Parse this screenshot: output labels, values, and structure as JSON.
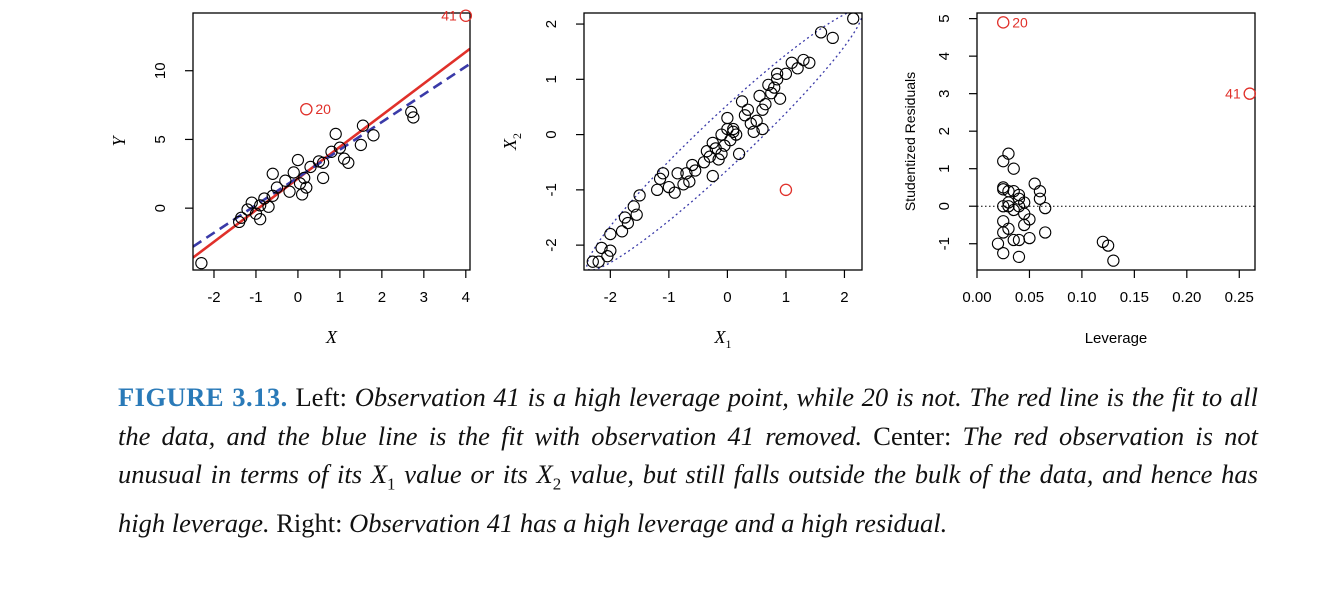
{
  "chart_data": [
    {
      "type": "scatter",
      "title": "",
      "xlabel": "X",
      "ylabel": "Y",
      "xlim": [
        -2.5,
        4.1
      ],
      "ylim": [
        -4.5,
        14.2
      ],
      "xticks": [
        "-2",
        "-1",
        "0",
        "1",
        "2",
        "3",
        "4"
      ],
      "yticks": [
        "0",
        "5",
        "10"
      ],
      "grid": false,
      "points": [
        [
          -2.3,
          -4.0
        ],
        [
          -1.4,
          -1.0
        ],
        [
          -1.35,
          -0.7
        ],
        [
          -1.2,
          -0.1
        ],
        [
          -1.1,
          0.4
        ],
        [
          -1.0,
          -0.4
        ],
        [
          -0.9,
          0.2
        ],
        [
          -0.9,
          -0.8
        ],
        [
          -0.8,
          0.7
        ],
        [
          -0.7,
          0.1
        ],
        [
          -0.6,
          0.9
        ],
        [
          -0.5,
          1.5
        ],
        [
          -0.6,
          2.5
        ],
        [
          -0.3,
          2.0
        ],
        [
          -0.2,
          1.2
        ],
        [
          -0.1,
          2.6
        ],
        [
          0.0,
          3.5
        ],
        [
          0.05,
          1.8
        ],
        [
          0.1,
          1.0
        ],
        [
          0.15,
          2.2
        ],
        [
          0.2,
          1.5
        ],
        [
          0.3,
          3.0
        ],
        [
          0.5,
          3.4
        ],
        [
          0.6,
          3.3
        ],
        [
          0.6,
          2.2
        ],
        [
          0.8,
          4.1
        ],
        [
          0.9,
          5.4
        ],
        [
          1.0,
          4.4
        ],
        [
          1.1,
          3.6
        ],
        [
          1.2,
          3.3
        ],
        [
          1.5,
          4.6
        ],
        [
          1.55,
          6.0
        ],
        [
          1.8,
          5.3
        ],
        [
          2.7,
          7.0
        ],
        [
          2.75,
          6.6
        ]
      ],
      "highlight_points": [
        {
          "label": "20",
          "x": 0.2,
          "y": 7.2
        },
        {
          "label": "41",
          "x": 4.0,
          "y": 14.0
        }
      ],
      "series": [
        {
          "name": "",
          "style": "solid",
          "color": "#e0302a",
          "line": {
            "x": [
              -2.5,
              4.1
            ],
            "y": [
              -3.6,
              11.6
            ]
          }
        },
        {
          "name": "",
          "style": "dashed",
          "color": "#3a3aa8",
          "line": {
            "x": [
              -2.5,
              4.1
            ],
            "y": [
              -2.8,
              10.5
            ]
          }
        }
      ]
    },
    {
      "type": "scatter",
      "title": "",
      "xlabel": "X",
      "xlabel_sub": "1",
      "ylabel": "X",
      "ylabel_sub": "2",
      "xlim": [
        -2.45,
        2.3
      ],
      "ylim": [
        -2.45,
        2.2
      ],
      "xticks": [
        "-2",
        "-1",
        "0",
        "1",
        "2"
      ],
      "yticks": [
        "-2",
        "-1",
        "0",
        "1",
        "2"
      ],
      "grid": false,
      "points": [
        [
          -2.3,
          -2.3
        ],
        [
          -2.2,
          -2.3
        ],
        [
          -2.15,
          -2.05
        ],
        [
          -2.05,
          -2.2
        ],
        [
          -2.0,
          -2.1
        ],
        [
          -2.0,
          -1.8
        ],
        [
          -1.8,
          -1.75
        ],
        [
          -1.75,
          -1.5
        ],
        [
          -1.7,
          -1.6
        ],
        [
          -1.6,
          -1.3
        ],
        [
          -1.55,
          -1.45
        ],
        [
          -1.5,
          -1.1
        ],
        [
          -1.2,
          -1.0
        ],
        [
          -1.15,
          -0.8
        ],
        [
          -1.1,
          -0.7
        ],
        [
          -1.0,
          -0.95
        ],
        [
          -0.9,
          -1.05
        ],
        [
          -0.85,
          -0.7
        ],
        [
          -0.75,
          -0.9
        ],
        [
          -0.7,
          -0.7
        ],
        [
          -0.65,
          -0.85
        ],
        [
          -0.6,
          -0.55
        ],
        [
          -0.55,
          -0.65
        ],
        [
          -0.4,
          -0.5
        ],
        [
          -0.35,
          -0.3
        ],
        [
          -0.3,
          -0.4
        ],
        [
          -0.25,
          -0.15
        ],
        [
          -0.2,
          -0.25
        ],
        [
          -0.15,
          -0.45
        ],
        [
          -0.1,
          -0.35
        ],
        [
          -0.1,
          0.0
        ],
        [
          0.0,
          0.3
        ],
        [
          0.05,
          -0.1
        ],
        [
          0.1,
          0.1
        ],
        [
          0.15,
          0.0
        ],
        [
          0.2,
          -0.35
        ],
        [
          0.25,
          0.6
        ],
        [
          0.3,
          0.35
        ],
        [
          0.35,
          0.45
        ],
        [
          0.4,
          0.2
        ],
        [
          0.45,
          0.05
        ],
        [
          0.5,
          0.25
        ],
        [
          0.55,
          0.7
        ],
        [
          0.6,
          0.1
        ],
        [
          0.65,
          0.55
        ],
        [
          0.7,
          0.9
        ],
        [
          0.75,
          0.75
        ],
        [
          0.8,
          0.85
        ],
        [
          0.85,
          1.0
        ],
        [
          0.9,
          0.65
        ],
        [
          1.0,
          1.1
        ],
        [
          1.1,
          1.3
        ],
        [
          1.2,
          1.2
        ],
        [
          1.3,
          1.35
        ],
        [
          1.4,
          1.3
        ],
        [
          1.6,
          1.85
        ],
        [
          1.8,
          1.75
        ],
        [
          2.15,
          2.1
        ],
        [
          -0.25,
          -0.75
        ],
        [
          0.0,
          0.1
        ],
        [
          0.1,
          0.05
        ],
        [
          -0.05,
          -0.2
        ],
        [
          0.85,
          1.1
        ],
        [
          0.6,
          0.45
        ]
      ],
      "highlight_points": [
        {
          "label": "",
          "x": 1.0,
          "y": -1.0
        }
      ],
      "series": [
        {
          "name": "",
          "style": "dotted-ellipse",
          "color": "#3a3aa8"
        }
      ]
    },
    {
      "type": "scatter",
      "title": "",
      "xlabel": "Leverage",
      "ylabel": "Studentized Residuals",
      "xlim": [
        0.0,
        0.265
      ],
      "ylim": [
        -1.7,
        5.15
      ],
      "xticks": [
        "0.00",
        "0.05",
        "0.10",
        "0.15",
        "0.20",
        "0.25"
      ],
      "yticks": [
        "-1",
        "0",
        "1",
        "2",
        "3",
        "4",
        "5"
      ],
      "grid": false,
      "reference_line": {
        "y": 0,
        "style": "dotted"
      },
      "points": [
        [
          0.025,
          1.2
        ],
        [
          0.03,
          1.4
        ],
        [
          0.035,
          1.0
        ],
        [
          0.025,
          0.5
        ],
        [
          0.03,
          0.4
        ],
        [
          0.035,
          0.4
        ],
        [
          0.04,
          0.2
        ],
        [
          0.045,
          0.1
        ],
        [
          0.03,
          0.0
        ],
        [
          0.035,
          -0.1
        ],
        [
          0.04,
          0.0
        ],
        [
          0.045,
          -0.2
        ],
        [
          0.05,
          -0.35
        ],
        [
          0.025,
          -0.4
        ],
        [
          0.03,
          -0.6
        ],
        [
          0.025,
          -0.7
        ],
        [
          0.035,
          -0.9
        ],
        [
          0.04,
          -0.9
        ],
        [
          0.05,
          -0.85
        ],
        [
          0.065,
          -0.7
        ],
        [
          0.02,
          -1.0
        ],
        [
          0.025,
          -1.25
        ],
        [
          0.04,
          -1.35
        ],
        [
          0.055,
          0.6
        ],
        [
          0.06,
          0.4
        ],
        [
          0.06,
          0.2
        ],
        [
          0.065,
          -0.05
        ],
        [
          0.12,
          -0.95
        ],
        [
          0.125,
          -1.05
        ],
        [
          0.13,
          -1.45
        ],
        [
          0.03,
          0.1
        ],
        [
          0.04,
          0.3
        ],
        [
          0.025,
          0.0
        ],
        [
          0.045,
          -0.5
        ],
        [
          0.025,
          0.45
        ]
      ],
      "highlight_points": [
        {
          "label": "20",
          "x": 0.025,
          "y": 4.9
        },
        {
          "label": "41",
          "x": 0.26,
          "y": 3.0
        }
      ]
    }
  ],
  "caption": {
    "label": "FIGURE 3.13.",
    "segments": [
      {
        "text": " Left: ",
        "italic": false
      },
      {
        "text": "Observation 41 is a high leverage point, while 20 is not. The red line is the fit to all the data, and the blue line is the fit with observation 41 removed.",
        "italic": true
      },
      {
        "text": " Center: ",
        "italic": false
      },
      {
        "text": "The red observation is not unusual in terms of its X",
        "italic": true
      },
      {
        "text": "1",
        "italic": false,
        "sub": true
      },
      {
        "text": " value or its X",
        "italic": true
      },
      {
        "text": "2",
        "italic": false,
        "sub": true
      },
      {
        "text": " value, but still falls outside the bulk of the data, and hence has high leverage.",
        "italic": true
      },
      {
        "text": " Right: ",
        "italic": false
      },
      {
        "text": "Observation 41 has a high leverage and a high residual.",
        "italic": true
      }
    ]
  },
  "colors": {
    "highlight": "#e0302a",
    "fit_red": "#e0302a",
    "fit_blue": "#3a3aa8",
    "caption_label": "#2a7ab8"
  }
}
